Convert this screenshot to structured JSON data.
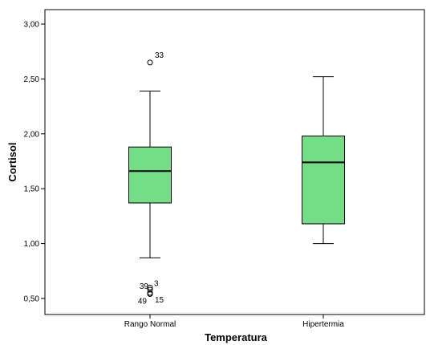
{
  "chart_data": {
    "type": "boxplot",
    "xlabel": "Temperatura",
    "ylabel": "Cortisol",
    "ylim": [
      0.45,
      3.1
    ],
    "y_ticks": [
      "0,50",
      "1,00",
      "1,50",
      "2,00",
      "2,50",
      "3,00"
    ],
    "y_tick_values": [
      0.5,
      1.0,
      1.5,
      2.0,
      2.5,
      3.0
    ],
    "box_color": "#73DE85",
    "groups": [
      {
        "category": "Rango Normal",
        "whisker_low": 0.87,
        "q1": 1.37,
        "median": 1.66,
        "q3": 1.88,
        "whisker_high": 2.39,
        "outliers": [
          {
            "value": 2.65,
            "label": "33"
          },
          {
            "value": 0.6,
            "label": "3"
          },
          {
            "value": 0.58,
            "label": "39"
          },
          {
            "value": 0.55,
            "label": "15"
          },
          {
            "value": 0.54,
            "label": "49"
          }
        ]
      },
      {
        "category": "Hipertermia",
        "whisker_low": 1.0,
        "q1": 1.18,
        "median": 1.74,
        "q3": 1.98,
        "whisker_high": 2.52,
        "outliers": []
      }
    ]
  }
}
